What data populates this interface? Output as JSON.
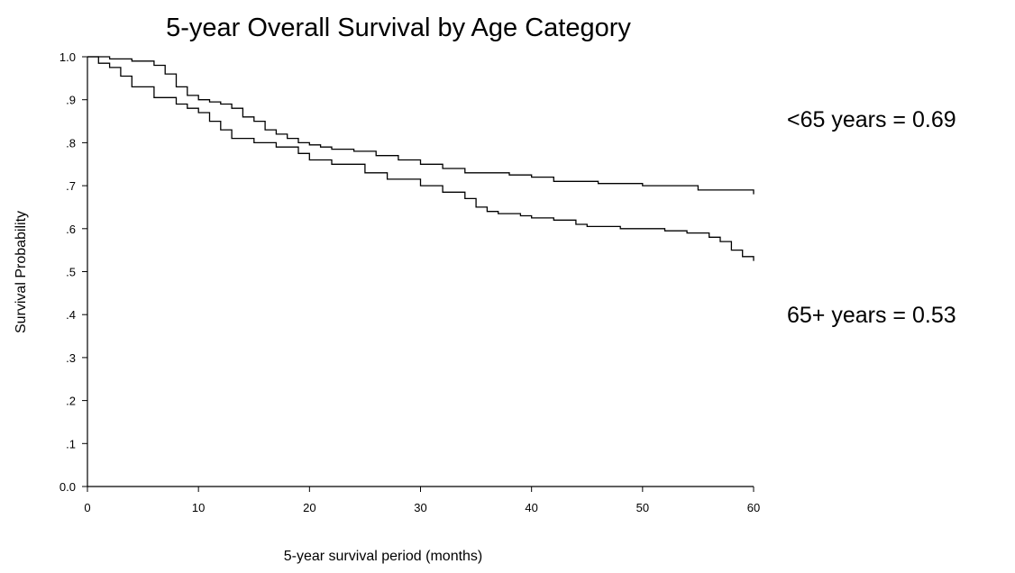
{
  "chart_data": {
    "type": "line",
    "step": true,
    "title": "5-year Overall Survival by Age Category",
    "xlabel": "5-year survival period (months)",
    "ylabel": "Survival Probability",
    "xlim": [
      0,
      60
    ],
    "ylim": [
      0,
      1
    ],
    "grid": false,
    "legend": "none",
    "x_ticks": [
      {
        "value": 0,
        "label": "0"
      },
      {
        "value": 10,
        "label": "10"
      },
      {
        "value": 20,
        "label": "20"
      },
      {
        "value": 30,
        "label": "30"
      },
      {
        "value": 40,
        "label": "40"
      },
      {
        "value": 50,
        "label": "50"
      },
      {
        "value": 60,
        "label": "60"
      }
    ],
    "y_ticks": [
      {
        "value": 0.0,
        "label": "0.0"
      },
      {
        "value": 0.1,
        "label": ".1"
      },
      {
        "value": 0.2,
        "label": ".2"
      },
      {
        "value": 0.3,
        "label": ".3"
      },
      {
        "value": 0.4,
        "label": ".4"
      },
      {
        "value": 0.5,
        "label": ".5"
      },
      {
        "value": 0.6,
        "label": ".6"
      },
      {
        "value": 0.7,
        "label": ".7"
      },
      {
        "value": 0.8,
        "label": ".8"
      },
      {
        "value": 0.9,
        "label": ".9"
      },
      {
        "value": 1.0,
        "label": "1.0"
      }
    ],
    "series": [
      {
        "color": "#000000",
        "x": [
          0,
          2,
          4,
          6,
          7,
          8,
          9,
          10,
          11,
          12,
          13,
          14,
          15,
          16,
          17,
          18,
          19,
          20,
          21,
          22,
          24,
          26,
          28,
          30,
          32,
          34,
          36,
          38,
          40,
          42,
          46,
          50,
          55,
          60
        ],
        "y": [
          1.0,
          0.995,
          0.99,
          0.98,
          0.96,
          0.93,
          0.91,
          0.9,
          0.895,
          0.89,
          0.88,
          0.86,
          0.85,
          0.83,
          0.82,
          0.81,
          0.8,
          0.795,
          0.79,
          0.785,
          0.78,
          0.77,
          0.76,
          0.75,
          0.74,
          0.73,
          0.73,
          0.725,
          0.72,
          0.71,
          0.705,
          0.7,
          0.69,
          0.68
        ]
      },
      {
        "color": "#000000",
        "x": [
          0,
          1,
          2,
          3,
          4,
          6,
          8,
          9,
          10,
          11,
          12,
          13,
          15,
          17,
          19,
          20,
          22,
          25,
          27,
          30,
          32,
          34,
          35,
          36,
          37,
          39,
          40,
          42,
          44,
          45,
          48,
          52,
          54,
          56,
          57,
          58,
          59,
          60
        ],
        "y": [
          1.0,
          0.985,
          0.975,
          0.955,
          0.93,
          0.905,
          0.89,
          0.88,
          0.87,
          0.85,
          0.83,
          0.81,
          0.8,
          0.79,
          0.775,
          0.76,
          0.75,
          0.73,
          0.715,
          0.7,
          0.685,
          0.67,
          0.65,
          0.64,
          0.635,
          0.63,
          0.625,
          0.62,
          0.61,
          0.605,
          0.6,
          0.595,
          0.59,
          0.58,
          0.57,
          0.55,
          0.535,
          0.525
        ]
      }
    ],
    "annotations": [
      {
        "text": "<65 years = 0.69"
      },
      {
        "text": "65+ years = 0.53"
      }
    ]
  }
}
